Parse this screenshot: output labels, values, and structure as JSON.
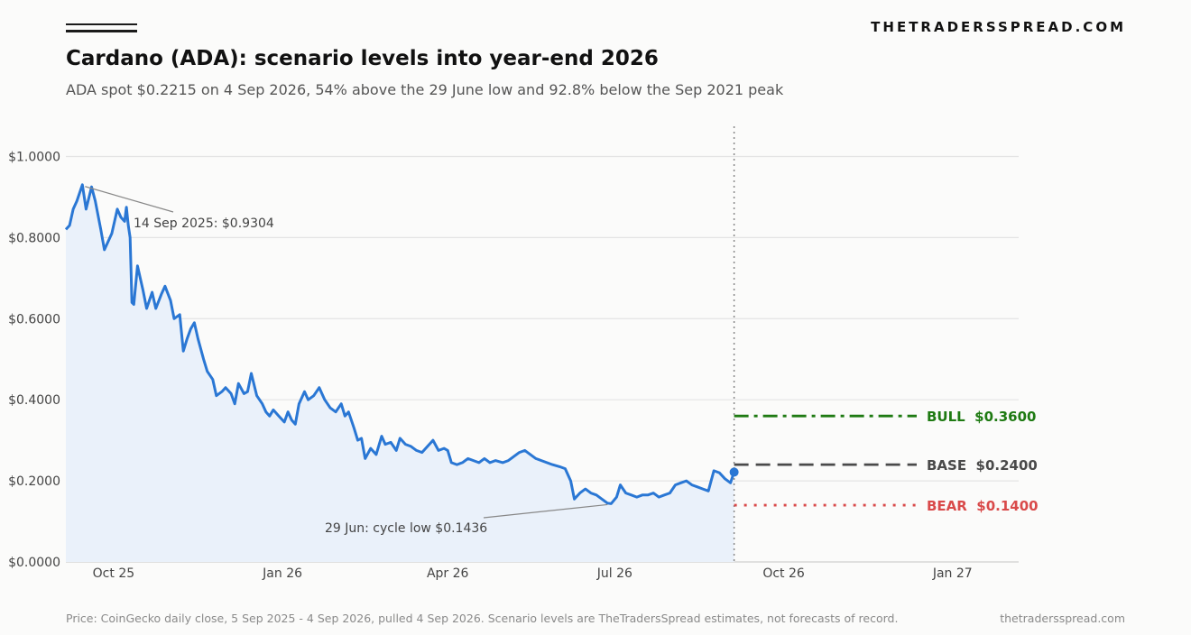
{
  "header": {
    "brand": "THETRADERSSPREAD.COM",
    "title": "Cardano (ADA): scenario levels into year-end 2026",
    "subtitle": "ADA spot $0.2215 on 4 Sep 2026, 54% above the 29 June low and 92.8% below the Sep 2021 peak"
  },
  "footer": {
    "source": "Price: CoinGecko daily close, 5 Sep 2025 - 4 Sep 2026, pulled 4 Sep 2026. Scenario levels are TheTradersSpread estimates, not forecasts of record.",
    "site": "thetradersspread.com"
  },
  "chart_data": {
    "type": "line",
    "title": "Cardano (ADA): scenario levels into year-end 2026",
    "ylim": [
      0,
      1.07
    ],
    "xlim": [
      "2025-09-05",
      "2027-02-06"
    ],
    "grid": "horizontal",
    "y_ticks": [
      {
        "value": 0.0,
        "label": "$0.0000"
      },
      {
        "value": 0.2,
        "label": "$0.2000"
      },
      {
        "value": 0.4,
        "label": "$0.4000"
      },
      {
        "value": 0.6,
        "label": "$0.6000"
      },
      {
        "value": 0.8,
        "label": "$0.8000"
      },
      {
        "value": 1.0,
        "label": "$1.0000"
      }
    ],
    "x_ticks": [
      {
        "date": "2025-10-01",
        "label": "Oct 25"
      },
      {
        "date": "2026-01-01",
        "label": "Jan 26"
      },
      {
        "date": "2026-04-01",
        "label": "Apr 26"
      },
      {
        "date": "2026-07-01",
        "label": "Jul 26"
      },
      {
        "date": "2026-10-01",
        "label": "Oct 26"
      },
      {
        "date": "2027-01-01",
        "label": "Jan 27"
      }
    ],
    "series": [
      {
        "color": "#2a77d4",
        "points": [
          [
            "2025-09-05",
            0.82
          ],
          [
            "2025-09-07",
            0.83
          ],
          [
            "2025-09-09",
            0.87
          ],
          [
            "2025-09-11",
            0.89
          ],
          [
            "2025-09-14",
            0.9304
          ],
          [
            "2025-09-16",
            0.87
          ],
          [
            "2025-09-19",
            0.925
          ],
          [
            "2025-09-21",
            0.89
          ],
          [
            "2025-09-24",
            0.82
          ],
          [
            "2025-09-26",
            0.77
          ],
          [
            "2025-09-28",
            0.79
          ],
          [
            "2025-09-30",
            0.81
          ],
          [
            "2025-10-03",
            0.87
          ],
          [
            "2025-10-05",
            0.85
          ],
          [
            "2025-10-07",
            0.84
          ],
          [
            "2025-10-08",
            0.875
          ],
          [
            "2025-10-09",
            0.83
          ],
          [
            "2025-10-10",
            0.8
          ],
          [
            "2025-10-11",
            0.64
          ],
          [
            "2025-10-12",
            0.635
          ],
          [
            "2025-10-14",
            0.73
          ],
          [
            "2025-10-17",
            0.67
          ],
          [
            "2025-10-19",
            0.625
          ],
          [
            "2025-10-22",
            0.665
          ],
          [
            "2025-10-24",
            0.625
          ],
          [
            "2025-10-27",
            0.66
          ],
          [
            "2025-10-29",
            0.68
          ],
          [
            "2025-11-01",
            0.645
          ],
          [
            "2025-11-03",
            0.6
          ],
          [
            "2025-11-06",
            0.61
          ],
          [
            "2025-11-08",
            0.52
          ],
          [
            "2025-11-10",
            0.55
          ],
          [
            "2025-11-12",
            0.575
          ],
          [
            "2025-11-14",
            0.59
          ],
          [
            "2025-11-16",
            0.55
          ],
          [
            "2025-11-19",
            0.5
          ],
          [
            "2025-11-21",
            0.47
          ],
          [
            "2025-11-24",
            0.45
          ],
          [
            "2025-11-26",
            0.41
          ],
          [
            "2025-11-29",
            0.42
          ],
          [
            "2025-12-01",
            0.43
          ],
          [
            "2025-12-04",
            0.415
          ],
          [
            "2025-12-06",
            0.39
          ],
          [
            "2025-12-08",
            0.44
          ],
          [
            "2025-12-11",
            0.415
          ],
          [
            "2025-12-13",
            0.42
          ],
          [
            "2025-12-15",
            0.465
          ],
          [
            "2025-12-18",
            0.41
          ],
          [
            "2025-12-21",
            0.39
          ],
          [
            "2025-12-23",
            0.37
          ],
          [
            "2025-12-25",
            0.36
          ],
          [
            "2025-12-27",
            0.375
          ],
          [
            "2025-12-30",
            0.36
          ],
          [
            "2026-01-02",
            0.345
          ],
          [
            "2026-01-04",
            0.37
          ],
          [
            "2026-01-06",
            0.35
          ],
          [
            "2026-01-08",
            0.34
          ],
          [
            "2026-01-10",
            0.39
          ],
          [
            "2026-01-13",
            0.42
          ],
          [
            "2026-01-15",
            0.4
          ],
          [
            "2026-01-18",
            0.41
          ],
          [
            "2026-01-21",
            0.43
          ],
          [
            "2026-01-24",
            0.4
          ],
          [
            "2026-01-27",
            0.38
          ],
          [
            "2026-01-30",
            0.37
          ],
          [
            "2026-02-02",
            0.39
          ],
          [
            "2026-02-04",
            0.36
          ],
          [
            "2026-02-06",
            0.37
          ],
          [
            "2026-02-09",
            0.33
          ],
          [
            "2026-02-11",
            0.3
          ],
          [
            "2026-02-13",
            0.305
          ],
          [
            "2026-02-15",
            0.255
          ],
          [
            "2026-02-18",
            0.28
          ],
          [
            "2026-02-21",
            0.265
          ],
          [
            "2026-02-24",
            0.31
          ],
          [
            "2026-02-26",
            0.29
          ],
          [
            "2026-03-01",
            0.295
          ],
          [
            "2026-03-04",
            0.275
          ],
          [
            "2026-03-06",
            0.305
          ],
          [
            "2026-03-09",
            0.29
          ],
          [
            "2026-03-12",
            0.285
          ],
          [
            "2026-03-15",
            0.275
          ],
          [
            "2026-03-18",
            0.27
          ],
          [
            "2026-03-21",
            0.285
          ],
          [
            "2026-03-24",
            0.3
          ],
          [
            "2026-03-27",
            0.275
          ],
          [
            "2026-03-30",
            0.28
          ],
          [
            "2026-04-01",
            0.275
          ],
          [
            "2026-04-03",
            0.245
          ],
          [
            "2026-04-06",
            0.24
          ],
          [
            "2026-04-09",
            0.245
          ],
          [
            "2026-04-12",
            0.255
          ],
          [
            "2026-04-15",
            0.25
          ],
          [
            "2026-04-18",
            0.245
          ],
          [
            "2026-04-21",
            0.255
          ],
          [
            "2026-04-24",
            0.245
          ],
          [
            "2026-04-27",
            0.25
          ],
          [
            "2026-05-01",
            0.245
          ],
          [
            "2026-05-04",
            0.25
          ],
          [
            "2026-05-07",
            0.26
          ],
          [
            "2026-05-10",
            0.27
          ],
          [
            "2026-05-13",
            0.275
          ],
          [
            "2026-05-16",
            0.265
          ],
          [
            "2026-05-19",
            0.255
          ],
          [
            "2026-05-22",
            0.25
          ],
          [
            "2026-05-25",
            0.245
          ],
          [
            "2026-05-28",
            0.24
          ],
          [
            "2026-06-01",
            0.235
          ],
          [
            "2026-06-04",
            0.23
          ],
          [
            "2026-06-07",
            0.2
          ],
          [
            "2026-06-09",
            0.155
          ],
          [
            "2026-06-12",
            0.17
          ],
          [
            "2026-06-15",
            0.18
          ],
          [
            "2026-06-18",
            0.17
          ],
          [
            "2026-06-21",
            0.165
          ],
          [
            "2026-06-24",
            0.155
          ],
          [
            "2026-06-27",
            0.145
          ],
          [
            "2026-06-29",
            0.1436
          ],
          [
            "2026-07-02",
            0.16
          ],
          [
            "2026-07-04",
            0.19
          ],
          [
            "2026-07-07",
            0.17
          ],
          [
            "2026-07-10",
            0.165
          ],
          [
            "2026-07-13",
            0.16
          ],
          [
            "2026-07-16",
            0.165
          ],
          [
            "2026-07-19",
            0.165
          ],
          [
            "2026-07-22",
            0.17
          ],
          [
            "2026-07-25",
            0.16
          ],
          [
            "2026-07-28",
            0.165
          ],
          [
            "2026-07-31",
            0.17
          ],
          [
            "2026-08-03",
            0.19
          ],
          [
            "2026-08-06",
            0.195
          ],
          [
            "2026-08-09",
            0.2
          ],
          [
            "2026-08-12",
            0.19
          ],
          [
            "2026-08-15",
            0.185
          ],
          [
            "2026-08-18",
            0.18
          ],
          [
            "2026-08-21",
            0.175
          ],
          [
            "2026-08-24",
            0.225
          ],
          [
            "2026-08-27",
            0.22
          ],
          [
            "2026-08-30",
            0.205
          ],
          [
            "2026-09-02",
            0.195
          ],
          [
            "2026-09-04",
            0.2215
          ]
        ]
      }
    ],
    "current_point": {
      "date": "2026-09-04",
      "value": 0.2215
    },
    "current_date_line": "2026-09-04",
    "scenarios": [
      {
        "name": "BULL",
        "value": 0.36,
        "value_label": "$0.3600",
        "color": "#1e7a12",
        "style": "dash-dot"
      },
      {
        "name": "BASE",
        "value": 0.24,
        "value_label": "$0.2400",
        "color": "#4a4a4a",
        "style": "dashed"
      },
      {
        "name": "BEAR",
        "value": 0.14,
        "value_label": "$0.1400",
        "color": "#d94a4a",
        "style": "dotted"
      }
    ],
    "annotations": [
      {
        "text": "14 Sep 2025: $0.9304",
        "date": "2025-09-14",
        "value": 0.9304
      },
      {
        "text": "29 Jun: cycle low $0.1436",
        "date": "2026-06-29",
        "value": 0.1436
      }
    ]
  }
}
